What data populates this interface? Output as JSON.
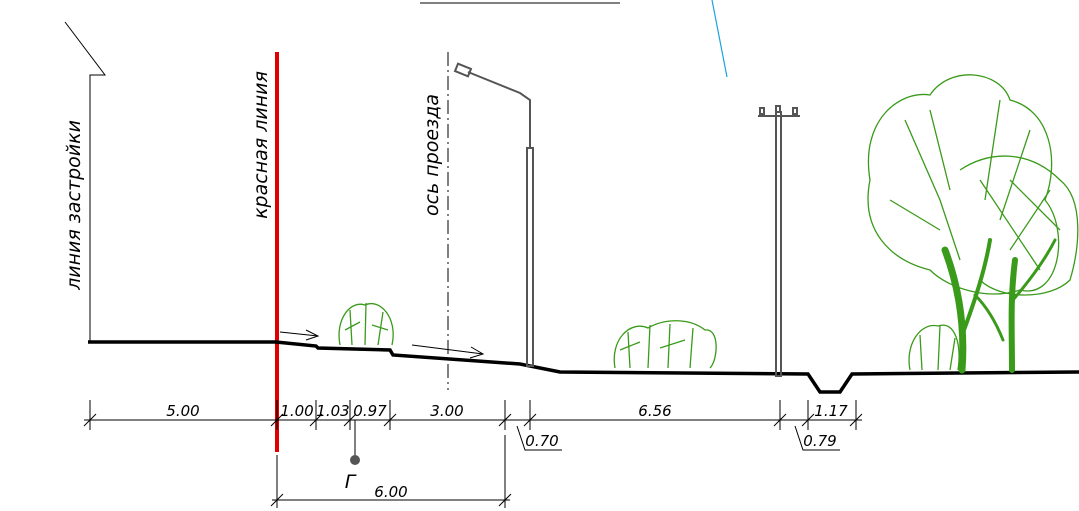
{
  "labels": {
    "building_line": "линия застройки",
    "red_line": "красная линия",
    "axis": "ось проезда",
    "gas": "Г"
  },
  "dimensions": {
    "top": [
      "5.00",
      "1.00",
      "1.03",
      "0.97",
      "3.00",
      "6.56",
      "1.17"
    ],
    "bottom": [
      "0.70",
      "0.79"
    ],
    "total": "6.00"
  }
}
